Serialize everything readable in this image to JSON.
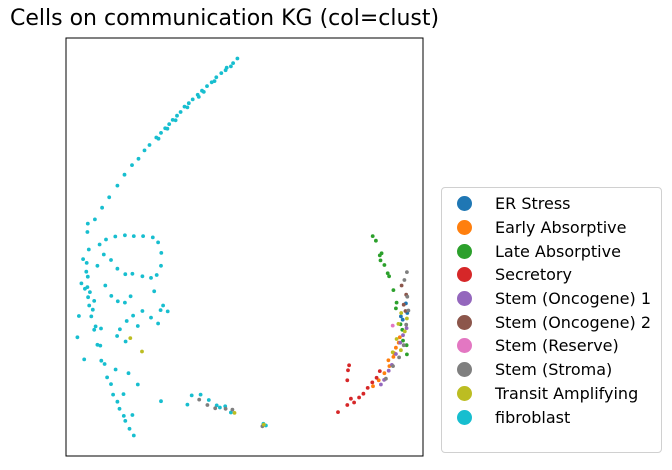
{
  "title": "Cells on communication KG (col=clust)",
  "chart_data": {
    "type": "scatter",
    "title": "Cells on communication KG (col=clust)",
    "xlabel": "",
    "ylabel": "",
    "axes_ticks": "none",
    "grid": false,
    "legend_position": "right",
    "xlim": [
      0,
      100
    ],
    "ylim": [
      0,
      100
    ],
    "series": [
      {
        "name": "ER Stress",
        "color": "#1f77b4",
        "points": [
          [
            95.2,
            36.5
          ],
          [
            93.8,
            33.4
          ],
          [
            95.6,
            34.2
          ],
          [
            94.3,
            32.6
          ]
        ]
      },
      {
        "name": "Early Absorptive",
        "color": "#ff7f0e",
        "points": [
          [
            91.7,
            23.7
          ],
          [
            90.6,
            21.5
          ],
          [
            89.2,
            19.8
          ],
          [
            87.6,
            18.1
          ],
          [
            86.0,
            16.7
          ],
          [
            92.4,
            25.9
          ],
          [
            93.5,
            28.4
          ],
          [
            93.2,
            27.1
          ],
          [
            90.3,
            22.9
          ],
          [
            91.9,
            24.6
          ]
        ]
      },
      {
        "name": "Late Absorptive",
        "color": "#2ca02c",
        "points": [
          [
            85.9,
            52.6
          ],
          [
            86.8,
            51.5
          ],
          [
            87.9,
            48.0
          ],
          [
            89.2,
            45.7
          ],
          [
            90.5,
            43.0
          ],
          [
            91.7,
            39.7
          ],
          [
            92.6,
            36.7
          ],
          [
            93.7,
            31.5
          ],
          [
            94.4,
            27.6
          ],
          [
            95.5,
            24.3
          ],
          [
            88.4,
            48.5
          ],
          [
            90.1,
            43.7
          ],
          [
            88.1,
            46.8
          ],
          [
            92.4,
            35.3
          ],
          [
            94.2,
            30.2
          ],
          [
            95.4,
            26.5
          ]
        ]
      },
      {
        "name": "Secretory",
        "color": "#d62728",
        "points": [
          [
            76.2,
            10.5
          ],
          [
            78.8,
            12.2
          ],
          [
            80.7,
            12.8
          ],
          [
            82.1,
            14.0
          ],
          [
            83.3,
            14.9
          ],
          [
            84.5,
            16.3
          ],
          [
            85.8,
            17.6
          ],
          [
            87.0,
            18.7
          ],
          [
            87.9,
            20.3
          ],
          [
            79.0,
            20.5
          ],
          [
            79.3,
            21.7
          ],
          [
            78.8,
            18.1
          ],
          [
            79.8,
            13.7
          ]
        ]
      },
      {
        "name": "Stem (Oncogene) 1",
        "color": "#9467bd",
        "points": [
          [
            88.2,
            17.1
          ],
          [
            89.1,
            18.2
          ],
          [
            90.4,
            20.4
          ],
          [
            91.3,
            21.8
          ],
          [
            92.4,
            24.4
          ],
          [
            93.6,
            27.1
          ],
          [
            94.4,
            28.9
          ],
          [
            95.4,
            30.6
          ]
        ]
      },
      {
        "name": "Stem (Oncogene) 2",
        "color": "#8c564b",
        "points": [
          [
            94.0,
            40.8
          ],
          [
            95.1,
            34.7
          ],
          [
            94.6,
            36.2
          ],
          [
            95.3,
            38.6
          ]
        ]
      },
      {
        "name": "Stem (Reserve)",
        "color": "#e377c2",
        "points": [
          [
            91.5,
            31.2
          ]
        ]
      },
      {
        "name": "Stem (Stroma)",
        "color": "#7f7f7f",
        "points": [
          [
            37.3,
            13.5
          ],
          [
            39.6,
            12.2
          ],
          [
            41.8,
            11.4
          ],
          [
            44.7,
            11.3
          ],
          [
            46.6,
            11.1
          ],
          [
            55.0,
            7.1
          ],
          [
            94.8,
            42.1
          ],
          [
            95.6,
            38.1
          ],
          [
            95.9,
            34.8
          ],
          [
            95.3,
            31.4
          ],
          [
            94.6,
            26.5
          ],
          [
            93.3,
            23.6
          ],
          [
            91.6,
            21.5
          ],
          [
            89.6,
            18.5
          ],
          [
            95.5,
            44.0
          ]
        ]
      },
      {
        "name": "Transit Amplifying",
        "color": "#bcbd22",
        "points": [
          [
            18.0,
            28.2
          ],
          [
            21.3,
            25.0
          ],
          [
            55.4,
            7.5
          ],
          [
            47.2,
            10.3
          ],
          [
            92.6,
            28.0
          ],
          [
            93.8,
            25.3
          ],
          [
            94.9,
            29.8
          ],
          [
            93.1,
            31.6
          ],
          [
            95.5,
            32.9
          ],
          [
            91.5,
            24.8
          ],
          [
            93.9,
            34.2
          ]
        ]
      },
      {
        "name": "fibroblast",
        "color": "#17becf",
        "points": [
          [
            48.0,
            95.1
          ],
          [
            46.8,
            94.0
          ],
          [
            45.0,
            92.9
          ],
          [
            43.5,
            91.6
          ],
          [
            42.1,
            90.6
          ],
          [
            40.8,
            89.4
          ],
          [
            39.5,
            88.5
          ],
          [
            38.1,
            87.4
          ],
          [
            36.9,
            86.4
          ],
          [
            35.5,
            85.3
          ],
          [
            34.4,
            84.4
          ],
          [
            33.2,
            83.6
          ],
          [
            32.1,
            82.3
          ],
          [
            31.1,
            81.4
          ],
          [
            29.9,
            80.4
          ],
          [
            28.9,
            79.4
          ],
          [
            27.8,
            78.4
          ],
          [
            26.6,
            77.3
          ],
          [
            25.3,
            76.2
          ],
          [
            23.4,
            74.4
          ],
          [
            22.0,
            73.1
          ],
          [
            20.3,
            71.1
          ],
          [
            18.5,
            69.6
          ],
          [
            16.4,
            67.3
          ],
          [
            14.4,
            64.7
          ],
          [
            12.1,
            61.9
          ],
          [
            10.1,
            59.4
          ],
          [
            8.1,
            56.6
          ],
          [
            6.0,
            53.6
          ],
          [
            46.2,
            93.2
          ],
          [
            44.7,
            92.3
          ],
          [
            41.6,
            89.7
          ],
          [
            38.6,
            87.1
          ],
          [
            37.2,
            85.9
          ],
          [
            34.0,
            83.4
          ],
          [
            30.7,
            80.3
          ],
          [
            28.4,
            78.3
          ],
          [
            25.9,
            75.9
          ],
          [
            6.4,
            49.4
          ],
          [
            5.8,
            46.2
          ],
          [
            6.1,
            42.9
          ],
          [
            6.0,
            40.4
          ],
          [
            6.2,
            38.0
          ],
          [
            6.5,
            36.0
          ],
          [
            7.1,
            33.4
          ],
          [
            7.9,
            30.2
          ],
          [
            8.8,
            26.6
          ],
          [
            9.9,
            22.8
          ],
          [
            11.5,
            18.8
          ],
          [
            13.2,
            14.7
          ],
          [
            15.0,
            11.3
          ],
          [
            16.6,
            8.4
          ],
          [
            17.8,
            6.5
          ],
          [
            19.0,
            4.9
          ],
          [
            7.5,
            35.0
          ],
          [
            8.3,
            31.0
          ],
          [
            9.6,
            26.4
          ],
          [
            10.8,
            22.0
          ],
          [
            12.6,
            17.2
          ],
          [
            14.4,
            13.0
          ],
          [
            16.2,
            9.6
          ],
          [
            6.7,
            39.2
          ],
          [
            5.7,
            44.1
          ],
          [
            4.8,
            47.1
          ],
          [
            5.3,
            40.0
          ],
          [
            7.9,
            37.1
          ],
          [
            9.8,
            30.5
          ],
          [
            13.9,
            20.7
          ],
          [
            16.1,
            14.8
          ],
          [
            18.6,
            9.8
          ],
          [
            9.4,
            50.6
          ],
          [
            11.2,
            51.8
          ],
          [
            13.8,
            52.5
          ],
          [
            16.5,
            52.8
          ],
          [
            19.0,
            52.6
          ],
          [
            21.6,
            52.6
          ],
          [
            24.3,
            52.3
          ],
          [
            25.8,
            51.1
          ],
          [
            26.7,
            48.6
          ],
          [
            26.6,
            45.5
          ],
          [
            25.4,
            43.3
          ],
          [
            23.8,
            42.6
          ],
          [
            21.4,
            43.0
          ],
          [
            18.6,
            43.6
          ],
          [
            16.6,
            43.5
          ],
          [
            14.4,
            44.8
          ],
          [
            12.6,
            46.9
          ],
          [
            10.6,
            48.2
          ],
          [
            8.8,
            45.5
          ],
          [
            11.0,
            40.8
          ],
          [
            12.7,
            38.3
          ],
          [
            14.5,
            37.0
          ],
          [
            16.5,
            36.7
          ],
          [
            18.1,
            38.2
          ],
          [
            18.8,
            33.6
          ],
          [
            20.1,
            31.1
          ],
          [
            21.4,
            34.7
          ],
          [
            17.0,
            32.3
          ],
          [
            15.1,
            30.3
          ],
          [
            14.3,
            28.7
          ],
          [
            16.7,
            27.4
          ],
          [
            24.7,
            39.4
          ],
          [
            27.2,
            36.0
          ],
          [
            28.5,
            34.6
          ],
          [
            25.8,
            31.7
          ],
          [
            26.5,
            34.9
          ],
          [
            23.8,
            33.1
          ],
          [
            20.1,
            17.1
          ],
          [
            17.5,
            19.8
          ],
          [
            26.6,
            13.1
          ],
          [
            3.2,
            28.4
          ],
          [
            3.6,
            33.5
          ],
          [
            5.1,
            23.1
          ],
          [
            4.3,
            41.3
          ],
          [
            6.1,
            55.6
          ],
          [
            34.0,
            12.3
          ],
          [
            35.2,
            14.5
          ],
          [
            37.7,
            14.7
          ],
          [
            40.0,
            13.4
          ],
          [
            42.2,
            12.1
          ],
          [
            44.6,
            11.9
          ],
          [
            46.2,
            10.4
          ],
          [
            43.1,
            11.6
          ],
          [
            55.3,
            7.7
          ],
          [
            56.0,
            7.3
          ]
        ]
      }
    ]
  },
  "legend": {
    "items": [
      {
        "label": "ER Stress",
        "color": "#1f77b4"
      },
      {
        "label": "Early Absorptive",
        "color": "#ff7f0e"
      },
      {
        "label": "Late Absorptive",
        "color": "#2ca02c"
      },
      {
        "label": "Secretory",
        "color": "#d62728"
      },
      {
        "label": "Stem (Oncogene) 1",
        "color": "#9467bd"
      },
      {
        "label": "Stem (Oncogene) 2",
        "color": "#8c564b"
      },
      {
        "label": "Stem (Reserve)",
        "color": "#e377c2"
      },
      {
        "label": "Stem (Stroma)",
        "color": "#7f7f7f"
      },
      {
        "label": "Transit Amplifying",
        "color": "#bcbd22"
      },
      {
        "label": "fibroblast",
        "color": "#17becf"
      }
    ]
  }
}
